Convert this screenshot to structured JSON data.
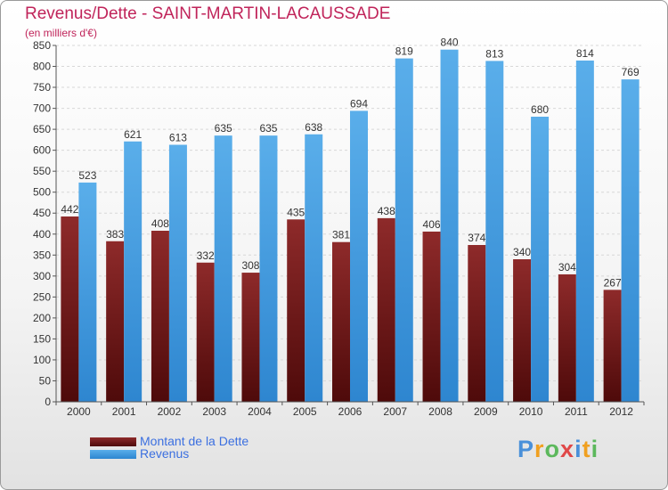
{
  "chart_data": {
    "type": "bar",
    "title": "Revenus/Dette - SAINT-MARTIN-LACAUSSADE",
    "ylabel": "(en milliers d'€)",
    "xlabel": "",
    "categories": [
      "2000",
      "2001",
      "2002",
      "2003",
      "2004",
      "2005",
      "2006",
      "2007",
      "2008",
      "2009",
      "2010",
      "2011",
      "2012"
    ],
    "series": [
      {
        "name": "Montant de la Dette",
        "color": "#7a1c1c",
        "values": [
          442,
          383,
          408,
          332,
          308,
          435,
          381,
          438,
          406,
          374,
          340,
          304,
          267
        ]
      },
      {
        "name": "Revenus",
        "color": "#4aa0e0",
        "values": [
          523,
          621,
          613,
          635,
          635,
          638,
          694,
          819,
          840,
          813,
          680,
          814,
          769
        ]
      }
    ],
    "ylim": [
      0,
      850
    ],
    "ytick_step": 50,
    "grid": true
  },
  "legend": {
    "items": [
      {
        "label": "Montant de la Dette",
        "color": "#7a1c1c"
      },
      {
        "label": "Revenus",
        "color": "#4aa0e0"
      }
    ]
  },
  "logo": {
    "letters": [
      "P",
      "r",
      "o",
      "x",
      "i",
      "t",
      "i"
    ],
    "colors": [
      "#4a90d9",
      "#f0a020",
      "#5cb85c",
      "#e04848",
      "#4a90d9",
      "#f0a020",
      "#5cb85c"
    ]
  }
}
